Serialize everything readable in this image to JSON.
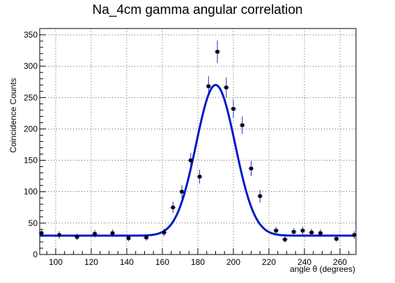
{
  "chart_data": {
    "type": "scatter",
    "title": "Na_4cm gamma angular correlation",
    "xlabel": "angle θ (degrees)",
    "ylabel": "Coincidence Counts",
    "xlim": [
      91,
      269
    ],
    "ylim": [
      0,
      360
    ],
    "grid": true,
    "x_ticks": [
      100,
      120,
      140,
      160,
      180,
      200,
      220,
      240,
      260
    ],
    "y_ticks": [
      0,
      50,
      100,
      150,
      200,
      250,
      300,
      350
    ],
    "series": [
      {
        "kind": "points-with-error-bars",
        "color": "#000000",
        "error_color": "#1f2ac8",
        "points": [
          {
            "x": 92,
            "y": 34,
            "err": 6
          },
          {
            "x": 102,
            "y": 31,
            "err": 6
          },
          {
            "x": 112,
            "y": 28,
            "err": 5
          },
          {
            "x": 122,
            "y": 33,
            "err": 6
          },
          {
            "x": 132,
            "y": 34,
            "err": 6
          },
          {
            "x": 141,
            "y": 26,
            "err": 5
          },
          {
            "x": 151,
            "y": 27,
            "err": 5
          },
          {
            "x": 161,
            "y": 35,
            "err": 6
          },
          {
            "x": 166,
            "y": 75,
            "err": 9
          },
          {
            "x": 171,
            "y": 100,
            "err": 10
          },
          {
            "x": 176,
            "y": 150,
            "err": 12
          },
          {
            "x": 181,
            "y": 124,
            "err": 11
          },
          {
            "x": 186,
            "y": 268,
            "err": 16
          },
          {
            "x": 191,
            "y": 323,
            "err": 18
          },
          {
            "x": 196,
            "y": 266,
            "err": 16
          },
          {
            "x": 200,
            "y": 232,
            "err": 15
          },
          {
            "x": 205,
            "y": 206,
            "err": 14
          },
          {
            "x": 210,
            "y": 137,
            "err": 12
          },
          {
            "x": 215,
            "y": 93,
            "err": 10
          },
          {
            "x": 224,
            "y": 38,
            "err": 6
          },
          {
            "x": 229,
            "y": 24,
            "err": 5
          },
          {
            "x": 234,
            "y": 36,
            "err": 6
          },
          {
            "x": 239,
            "y": 38,
            "err": 6
          },
          {
            "x": 244,
            "y": 35,
            "err": 6
          },
          {
            "x": 249,
            "y": 34,
            "err": 6
          },
          {
            "x": 258,
            "y": 25,
            "err": 5
          },
          {
            "x": 268,
            "y": 31,
            "err": 6
          }
        ]
      },
      {
        "kind": "fit-curve",
        "model": "gaussian-plus-constant",
        "color": "#0019c8",
        "amplitude": 240,
        "mean": 190,
        "sigma": 11,
        "baseline": 30
      }
    ]
  }
}
